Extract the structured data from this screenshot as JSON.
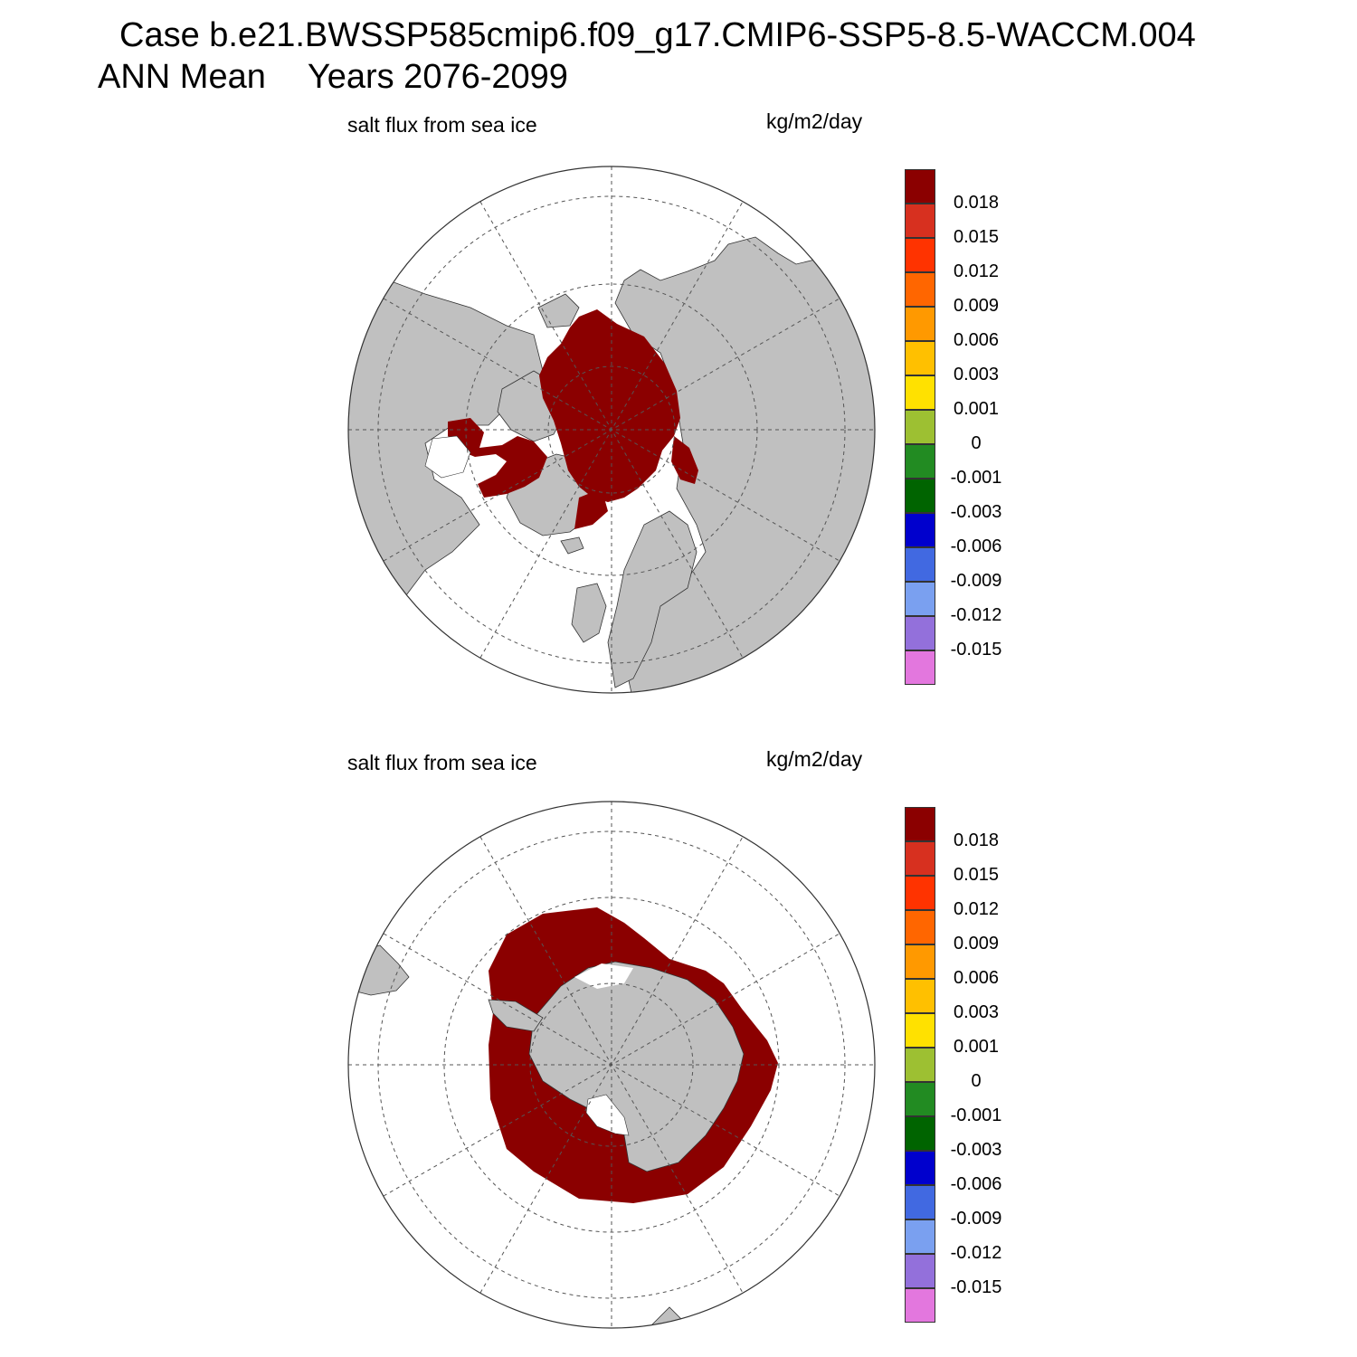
{
  "header": {
    "case_title": "Case b.e21.BWSSP585cmip6.f09_g17.CMIP6-SSP5-8.5-WACCM.004",
    "season": "ANN Mean",
    "years": "Years 2076-2099"
  },
  "colors": {
    "land": "#c0c0c0",
    "field": "#8b0000",
    "ocean": "#ffffff",
    "grid": "#555555"
  },
  "colorbar": {
    "colors": [
      "#8b0000",
      "#d7301f",
      "#ff3300",
      "#ff6600",
      "#ff9900",
      "#ffc000",
      "#ffe100",
      "#9dc032",
      "#228b22",
      "#006400",
      "#0000cd",
      "#4169e1",
      "#7aa0f0",
      "#9370db",
      "#e377de"
    ],
    "labels": [
      "0.018",
      "0.015",
      "0.012",
      "0.009",
      "0.006",
      "0.003",
      "0.001",
      "0",
      "-0.001",
      "-0.003",
      "-0.006",
      "-0.009",
      "-0.012",
      "-0.015"
    ]
  },
  "panels": [
    {
      "id": "north",
      "title": "salt flux from sea ice",
      "units": "kg/m2/day",
      "hemisphere": "Northern Hemisphere polar stereographic"
    },
    {
      "id": "south",
      "title": "salt flux from sea ice",
      "units": "kg/m2/day",
      "hemisphere": "Southern Hemisphere polar stereographic"
    }
  ]
}
